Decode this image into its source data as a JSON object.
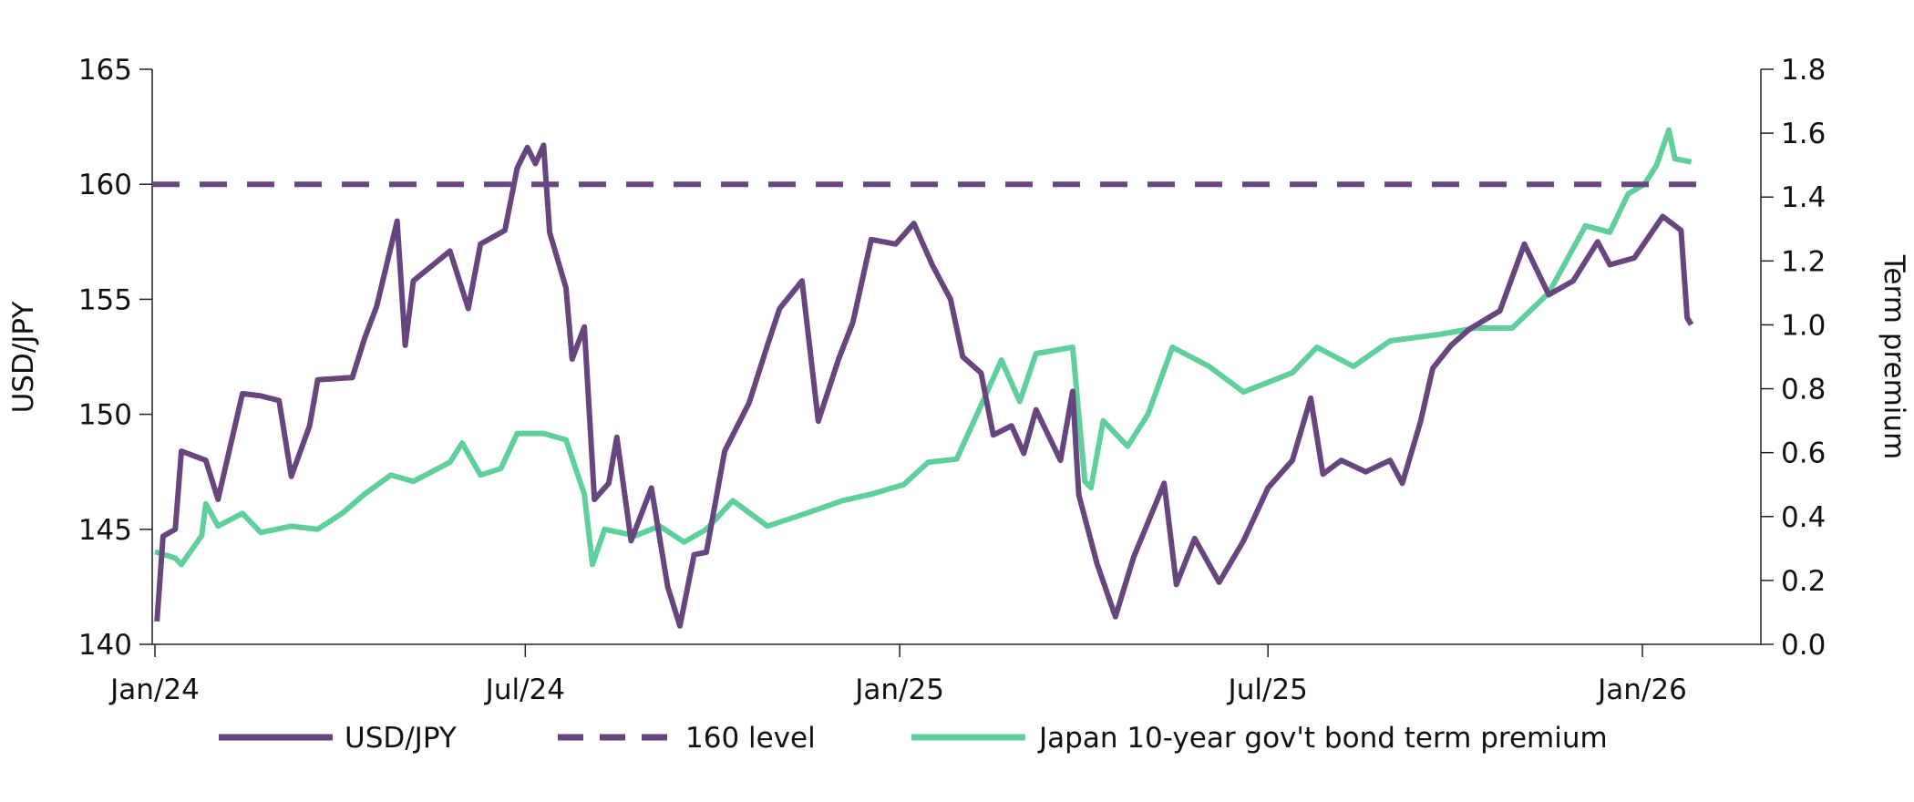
{
  "chart_data": {
    "type": "line",
    "title": "",
    "xlabel": "",
    "ylabel": "USD/JPY",
    "y2label": "Term premium",
    "ylim": [
      140,
      165
    ],
    "y2lim": [
      0.0,
      1.8
    ],
    "yticks": [
      "140",
      "145",
      "150",
      "155",
      "160",
      "165"
    ],
    "y2ticks": [
      "0.0",
      "0.2",
      "0.4",
      "0.6",
      "0.8",
      "1.0",
      "1.2",
      "1.4",
      "1.6",
      "1.8"
    ],
    "xticks": [
      {
        "date": "2024-01-01",
        "label": "Jan/24"
      },
      {
        "date": "2024-07-01",
        "label": "Jul/24"
      },
      {
        "date": "2025-01-01",
        "label": "Jan/25"
      },
      {
        "date": "2025-07-01",
        "label": "Jul/25"
      },
      {
        "date": "2026-01-01",
        "label": "Jan/26"
      }
    ],
    "grid": false,
    "legend": "bottom",
    "colors": {
      "usdjpy": "#67457f",
      "level": "#67457f",
      "term": "#5fcf9c"
    },
    "series": [
      {
        "name": "USD/JPY",
        "axis": "left",
        "style": "solid",
        "points": [
          [
            "2024-01-02",
            141.0
          ],
          [
            "2024-01-05",
            144.7
          ],
          [
            "2024-01-11",
            145.0
          ],
          [
            "2024-01-14",
            148.4
          ],
          [
            "2024-01-26",
            148.0
          ],
          [
            "2024-02-01",
            146.3
          ],
          [
            "2024-02-13",
            150.9
          ],
          [
            "2024-02-22",
            150.8
          ],
          [
            "2024-03-02",
            150.6
          ],
          [
            "2024-03-08",
            147.3
          ],
          [
            "2024-03-17",
            149.5
          ],
          [
            "2024-03-21",
            151.5
          ],
          [
            "2024-04-07",
            151.6
          ],
          [
            "2024-04-13",
            153.3
          ],
          [
            "2024-04-19",
            154.7
          ],
          [
            "2024-04-29",
            158.4
          ],
          [
            "2024-05-03",
            153.0
          ],
          [
            "2024-05-07",
            155.8
          ],
          [
            "2024-05-25",
            157.1
          ],
          [
            "2024-06-03",
            154.6
          ],
          [
            "2024-06-09",
            157.4
          ],
          [
            "2024-06-21",
            158.0
          ],
          [
            "2024-06-27",
            160.7
          ],
          [
            "2024-07-02",
            161.6
          ],
          [
            "2024-07-06",
            160.9
          ],
          [
            "2024-07-10",
            161.7
          ],
          [
            "2024-07-13",
            157.9
          ],
          [
            "2024-07-21",
            155.5
          ],
          [
            "2024-07-24",
            152.4
          ],
          [
            "2024-07-30",
            153.8
          ],
          [
            "2024-08-04",
            146.3
          ],
          [
            "2024-08-11",
            147.0
          ],
          [
            "2024-08-15",
            149.0
          ],
          [
            "2024-08-22",
            144.5
          ],
          [
            "2024-09-01",
            146.8
          ],
          [
            "2024-09-09",
            142.5
          ],
          [
            "2024-09-15",
            140.8
          ],
          [
            "2024-09-22",
            143.9
          ],
          [
            "2024-09-28",
            144.0
          ],
          [
            "2024-10-07",
            148.4
          ],
          [
            "2024-10-19",
            150.5
          ],
          [
            "2024-10-28",
            153.0
          ],
          [
            "2024-11-03",
            154.6
          ],
          [
            "2024-11-14",
            155.8
          ],
          [
            "2024-11-22",
            149.7
          ],
          [
            "2024-12-02",
            152.4
          ],
          [
            "2024-12-09",
            154.0
          ],
          [
            "2024-12-18",
            157.6
          ],
          [
            "2024-12-30",
            157.4
          ],
          [
            "2025-01-08",
            158.3
          ],
          [
            "2025-01-17",
            156.5
          ],
          [
            "2025-01-26",
            155.0
          ],
          [
            "2025-02-01",
            152.5
          ],
          [
            "2025-02-10",
            151.8
          ],
          [
            "2025-02-16",
            149.1
          ],
          [
            "2025-02-25",
            149.5
          ],
          [
            "2025-03-03",
            148.3
          ],
          [
            "2025-03-09",
            150.2
          ],
          [
            "2025-03-21",
            148.0
          ],
          [
            "2025-03-27",
            151.0
          ],
          [
            "2025-03-30",
            146.5
          ],
          [
            "2025-04-08",
            143.5
          ],
          [
            "2025-04-17",
            141.2
          ],
          [
            "2025-04-26",
            143.8
          ],
          [
            "2025-05-11",
            147.0
          ],
          [
            "2025-05-17",
            142.6
          ],
          [
            "2025-05-26",
            144.6
          ],
          [
            "2025-06-07",
            142.7
          ],
          [
            "2025-06-19",
            144.5
          ],
          [
            "2025-07-01",
            146.8
          ],
          [
            "2025-07-13",
            148.0
          ],
          [
            "2025-07-22",
            150.7
          ],
          [
            "2025-07-28",
            147.4
          ],
          [
            "2025-08-06",
            148.0
          ],
          [
            "2025-08-18",
            147.5
          ],
          [
            "2025-08-30",
            148.0
          ],
          [
            "2025-09-05",
            147.0
          ],
          [
            "2025-09-14",
            149.7
          ],
          [
            "2025-09-20",
            152.0
          ],
          [
            "2025-09-29",
            153.0
          ],
          [
            "2025-10-08",
            153.7
          ],
          [
            "2025-10-23",
            154.5
          ],
          [
            "2025-11-04",
            157.4
          ],
          [
            "2025-11-16",
            155.2
          ],
          [
            "2025-11-28",
            155.8
          ],
          [
            "2025-12-10",
            157.5
          ],
          [
            "2025-12-16",
            156.5
          ],
          [
            "2025-12-28",
            156.8
          ],
          [
            "2026-01-11",
            158.6
          ],
          [
            "2026-01-17",
            158.2
          ],
          [
            "2026-01-20",
            158.0
          ],
          [
            "2026-01-23",
            154.2
          ],
          [
            "2026-01-25",
            153.9
          ]
        ]
      },
      {
        "name": "160 level",
        "axis": "left",
        "style": "dashed",
        "points": [
          [
            "2024-01-01",
            160
          ],
          [
            "2026-01-25",
            160
          ]
        ]
      },
      {
        "name": "Japan 10-year gov't bond term premium",
        "axis": "right",
        "style": "solid",
        "points": [
          [
            "2024-01-01",
            0.29
          ],
          [
            "2024-01-11",
            0.27
          ],
          [
            "2024-01-14",
            0.25
          ],
          [
            "2024-01-24",
            0.34
          ],
          [
            "2024-01-26",
            0.44
          ],
          [
            "2024-02-01",
            0.37
          ],
          [
            "2024-02-13",
            0.41
          ],
          [
            "2024-02-22",
            0.35
          ],
          [
            "2024-03-08",
            0.37
          ],
          [
            "2024-03-21",
            0.36
          ],
          [
            "2024-04-02",
            0.41
          ],
          [
            "2024-04-13",
            0.47
          ],
          [
            "2024-04-26",
            0.53
          ],
          [
            "2024-05-07",
            0.51
          ],
          [
            "2024-05-25",
            0.57
          ],
          [
            "2024-05-31",
            0.63
          ],
          [
            "2024-06-09",
            0.53
          ],
          [
            "2024-06-19",
            0.55
          ],
          [
            "2024-06-27",
            0.66
          ],
          [
            "2024-07-10",
            0.66
          ],
          [
            "2024-07-21",
            0.64
          ],
          [
            "2024-07-30",
            0.47
          ],
          [
            "2024-08-03",
            0.25
          ],
          [
            "2024-08-09",
            0.36
          ],
          [
            "2024-08-24",
            0.34
          ],
          [
            "2024-09-05",
            0.37
          ],
          [
            "2024-09-17",
            0.32
          ],
          [
            "2024-09-28",
            0.36
          ],
          [
            "2024-10-11",
            0.45
          ],
          [
            "2024-10-28",
            0.37
          ],
          [
            "2024-11-16",
            0.41
          ],
          [
            "2024-12-04",
            0.45
          ],
          [
            "2024-12-18",
            0.47
          ],
          [
            "2025-01-03",
            0.5
          ],
          [
            "2025-01-15",
            0.57
          ],
          [
            "2025-01-29",
            0.58
          ],
          [
            "2025-02-08",
            0.72
          ],
          [
            "2025-02-20",
            0.89
          ],
          [
            "2025-03-01",
            0.76
          ],
          [
            "2025-03-09",
            0.91
          ],
          [
            "2025-03-27",
            0.93
          ],
          [
            "2025-04-02",
            0.51
          ],
          [
            "2025-04-05",
            0.49
          ],
          [
            "2025-04-11",
            0.7
          ],
          [
            "2025-04-23",
            0.62
          ],
          [
            "2025-05-03",
            0.72
          ],
          [
            "2025-05-15",
            0.93
          ],
          [
            "2025-06-02",
            0.87
          ],
          [
            "2025-06-19",
            0.79
          ],
          [
            "2025-07-13",
            0.85
          ],
          [
            "2025-07-25",
            0.93
          ],
          [
            "2025-08-12",
            0.87
          ],
          [
            "2025-08-30",
            0.95
          ],
          [
            "2025-09-23",
            0.97
          ],
          [
            "2025-10-11",
            0.99
          ],
          [
            "2025-10-29",
            0.99
          ],
          [
            "2025-11-16",
            1.1
          ],
          [
            "2025-12-04",
            1.31
          ],
          [
            "2025-12-16",
            1.29
          ],
          [
            "2025-12-25",
            1.41
          ],
          [
            "2026-01-02",
            1.44
          ],
          [
            "2026-01-08",
            1.5
          ],
          [
            "2026-01-14",
            1.61
          ],
          [
            "2026-01-17",
            1.52
          ],
          [
            "2026-01-25",
            1.51
          ]
        ]
      }
    ]
  }
}
